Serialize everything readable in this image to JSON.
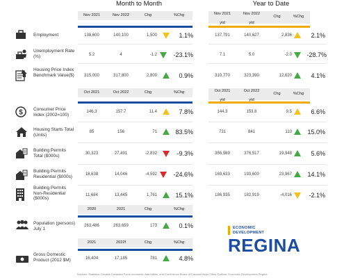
{
  "sections": {
    "month_to_month": "Month to Month",
    "year_to_date": "Year to Date"
  },
  "headers": {
    "h1": {
      "c1": "Nov 2021",
      "c2": "Nov 2022",
      "c3": "Chg",
      "c4": "%Chg",
      "y1": "Nov 2021",
      "y2": "Nov 2022",
      "y3": "Chg",
      "y4": "%Chg"
    },
    "h2": {
      "c1": "Oct 2021",
      "c2": "Oct 2022",
      "c3": "Chg",
      "c4": "%Chg",
      "y1": "Oct 2021",
      "y1b": "ytd",
      "y2": "Oct 2022",
      "y2b": "ytd",
      "y3": "Chg",
      "y4": "%Chg"
    },
    "h3": {
      "c1": "2020",
      "c2": "2021",
      "c3": "Chg",
      "c4": "%Chg"
    },
    "h4": {
      "c1": "2021",
      "c2": "2022f",
      "c3": "Chg",
      "c4": "%Chg"
    },
    "ytd": "ytd"
  },
  "rows": [
    {
      "label": "Employment",
      "m1": "138,600",
      "m2": "140,100",
      "m3": "1,500",
      "mp": "1.1%",
      "y1": "137,791",
      "y2": "140,627",
      "y3": "2,836",
      "yp": "2.1%"
    },
    {
      "label": "Unemployment Rate (%)",
      "m1": "5.2",
      "m2": "4",
      "m3": "-1.2",
      "mp": "-23.1%",
      "y1": "7.1",
      "y2": "5.0",
      "y3": "-2.0",
      "yp": "-28.7%"
    },
    {
      "label": "Housing Price Index Benchmark Value($)",
      "m1": "315,000",
      "m2": "317,800",
      "m3": "2,800",
      "mp": "0.9%",
      "y1": "310,770",
      "y2": "323,390",
      "y3": "12,620",
      "yp": "4.1%"
    },
    {
      "label": "Consumer Price Index (2002=100)",
      "m1": "146.3",
      "m2": "157.7",
      "m3": "11.4",
      "mp": "7.8%",
      "y1": "144.3",
      "y2": "153.8",
      "y3": "9.5",
      "yp": "6.6%"
    },
    {
      "label": "Housing Starts Total (Units)",
      "m1": "85",
      "m2": "156",
      "m3": "71",
      "mp": "83.5%",
      "y1": "731",
      "y2": "841",
      "y3": "110",
      "yp": "15.0%"
    },
    {
      "label": "Building Permits Total ($000s)",
      "m1": "30,323",
      "m2": "27,491",
      "m3": "-2,832",
      "mp": "-9.3%",
      "y1": "356,569",
      "y2": "376,517",
      "y3": "19,948",
      "yp": "5.6%"
    },
    {
      "label": "Building Permits Residential ($000s)",
      "m1": "18,638",
      "m2": "14,046",
      "m3": "-4,592",
      "mp": "-24.6%",
      "y1": "169,633",
      "y2": "193,600",
      "y3": "23,967",
      "yp": "14.1%"
    },
    {
      "label": "Building Permits Non-Residential ($000s)",
      "m1": "11,684",
      "m2": "13,445",
      "m3": "1,761",
      "mp": "15.1%",
      "y1": "186,935",
      "y2": "182,919",
      "y3": "-4,016",
      "yp": "-2.1%"
    },
    {
      "label": "Population (persons) July 1",
      "m1": "263,486",
      "m2": "263,659",
      "m3": "173",
      "mp": "0.1%"
    },
    {
      "label": "Gross Domestic Product (2012 $M)",
      "m1": "16,404",
      "m2": "17,185",
      "m3": "781",
      "mp": "4.8%"
    }
  ],
  "logo": {
    "line1": "ECONOMIC",
    "line2": "DEVELOPMENT",
    "name": "REGINA"
  },
  "footer": "Sources: Statistics Canada Canadian Socio-economic data tables, and Conference Board of Canada Major Cities Outlook; Economic Development Regina",
  "colors": {
    "blue": "#1b4ca0",
    "orange": "#f2a900",
    "up_green": "#45a845",
    "neutral_yellow": "#f2c21b",
    "down_red": "#d92b2b"
  }
}
